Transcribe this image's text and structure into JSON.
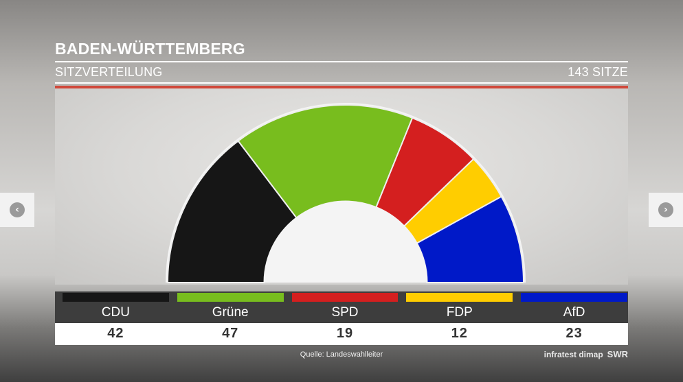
{
  "header": {
    "title": "BADEN-WÜRTTEMBERG",
    "subtitle": "SITZVERTEILUNG",
    "seats_total": "143 SITZE"
  },
  "chart_data": {
    "type": "pie",
    "subtype": "semicircle-parliament",
    "total": 143,
    "categories": [
      "CDU",
      "Grüne",
      "SPD",
      "FDP",
      "AfD"
    ],
    "values": [
      42,
      47,
      19,
      12,
      23
    ],
    "colors": [
      "#161616",
      "#78bd1e",
      "#d41f1f",
      "#ffcd00",
      "#0019c8"
    ]
  },
  "footer": {
    "source": "Quelle: Landeswahlleiter",
    "credit": "infratest dimap",
    "brand": "SWR"
  },
  "nav": {
    "prev_icon": "chevron-left-icon",
    "next_icon": "chevron-right-icon",
    "prev_glyph": "‹",
    "next_glyph": "›"
  }
}
